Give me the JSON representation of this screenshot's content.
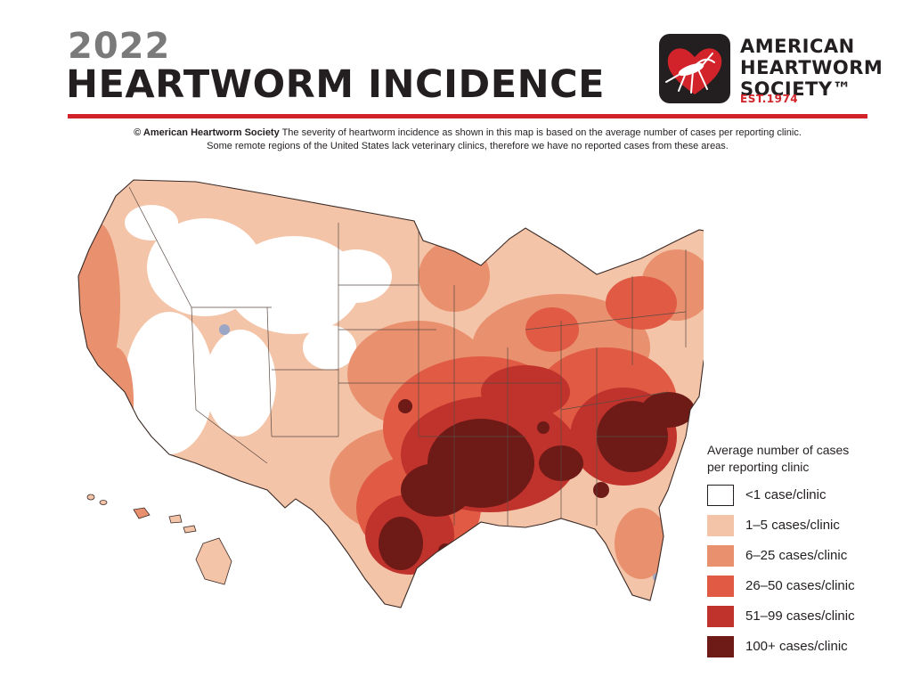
{
  "header": {
    "year": "2022",
    "title": "HEARTWORM INCIDENCE",
    "accent_color": "#d2232a"
  },
  "logo": {
    "line1": "AMERICAN",
    "line2": "HEARTWORM",
    "line3": "SOCIETY™",
    "est": "EST.1974",
    "icon": "mosquito-heart-icon"
  },
  "credit": {
    "org": "© American Heartworm Society",
    "line1": "The severity of heartworm incidence as shown in this map is based on the average number of cases per reporting clinic.",
    "line2": "Some remote regions of the United States lack veterinary clinics, therefore we have no reported cases from these areas."
  },
  "legend": {
    "title_line1": "Average number of cases",
    "title_line2": "per reporting clinic",
    "items": [
      {
        "label": "<1 case/clinic",
        "color": "#ffffff"
      },
      {
        "label": "1–5 cases/clinic",
        "color": "#f4c4a8"
      },
      {
        "label": "6–25 cases/clinic",
        "color": "#e9906e"
      },
      {
        "label": "26–50 cases/clinic",
        "color": "#e05a44"
      },
      {
        "label": "51–99 cases/clinic",
        "color": "#c0322c"
      },
      {
        "label": "100+ cases/clinic",
        "color": "#6e1a17"
      }
    ]
  }
}
